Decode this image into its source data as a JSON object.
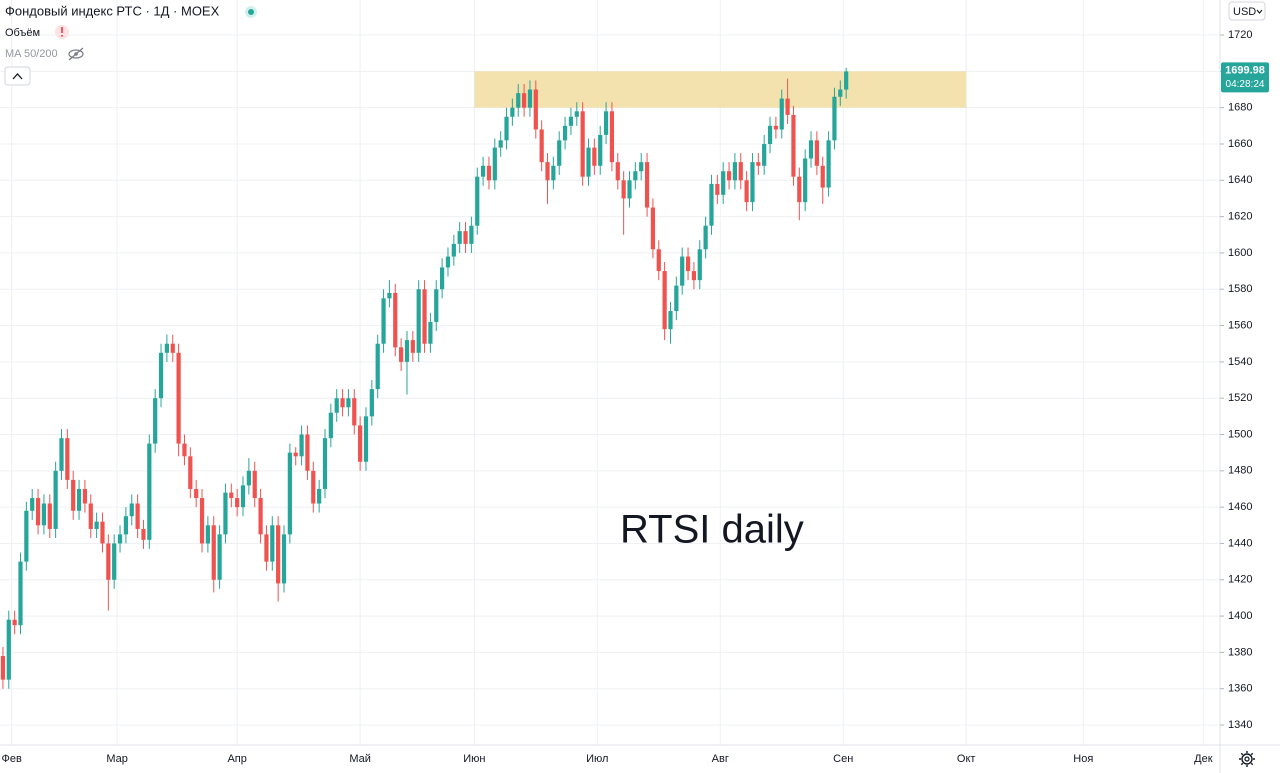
{
  "chart_data": {
    "type": "candlestick",
    "title": "Фондовый индекс РТС · 1Д · MOEX",
    "indicators": [
      "Объём",
      "MA 50/200"
    ],
    "currency": "USD",
    "annotation": "RTSI daily",
    "last_price_label": "1699.98",
    "countdown": "04:28:24",
    "up_color": "#26a69a",
    "down_color": "#ef5350",
    "zone": {
      "x": [
        80.5,
        164.5
      ],
      "y": [
        1680,
        1700
      ],
      "color": "#f2e0aa"
    },
    "grid": true,
    "ylim": [
      1329,
      1739.3
    ],
    "yticks": [
      1340,
      1360,
      1380,
      1400,
      1420,
      1440,
      1460,
      1480,
      1500,
      1520,
      1540,
      1560,
      1580,
      1600,
      1620,
      1640,
      1660,
      1680,
      1700,
      1720
    ],
    "xlim": [
      -0.5,
      207.5
    ],
    "xticks": [
      {
        "value": 1.5,
        "label": "Фев"
      },
      {
        "value": 19.5,
        "label": "Мар"
      },
      {
        "value": 40,
        "label": "Апр"
      },
      {
        "value": 61,
        "label": "Май"
      },
      {
        "value": 80.5,
        "label": "Июн"
      },
      {
        "value": 101.5,
        "label": "Июл"
      },
      {
        "value": 122.5,
        "label": "Авг"
      },
      {
        "value": 143.5,
        "label": "Сен"
      },
      {
        "value": 164.5,
        "label": "Окт"
      },
      {
        "value": 184.5,
        "label": "Ноя"
      },
      {
        "value": 205,
        "label": "Дек"
      }
    ],
    "open": [
      1378,
      1365,
      1398,
      1395,
      1430,
      1458,
      1465,
      1450,
      1462,
      1448,
      1480,
      1498,
      1475,
      1458,
      1470,
      1462,
      1448,
      1452,
      1440,
      1420,
      1440,
      1445,
      1455,
      1462,
      1448,
      1442,
      1495,
      1520,
      1545,
      1550,
      1545,
      1495,
      1488,
      1470,
      1465,
      1440,
      1450,
      1420,
      1445,
      1468,
      1465,
      1460,
      1472,
      1480,
      1465,
      1445,
      1430,
      1450,
      1418,
      1445,
      1490,
      1488,
      1500,
      1480,
      1462,
      1470,
      1498,
      1512,
      1520,
      1515,
      1520,
      1505,
      1485,
      1510,
      1525,
      1550,
      1575,
      1578,
      1548,
      1540,
      1552,
      1545,
      1580,
      1550,
      1562,
      1580,
      1592,
      1598,
      1605,
      1612,
      1605,
      1615,
      1642,
      1648,
      1640,
      1658,
      1662,
      1675,
      1680,
      1688,
      1680,
      1690,
      1668,
      1650,
      1640,
      1648,
      1662,
      1670,
      1675,
      1678,
      1642,
      1658,
      1648,
      1665,
      1678,
      1650,
      1640,
      1630,
      1640,
      1645,
      1650,
      1625,
      1602,
      1590,
      1558,
      1568,
      1582,
      1598,
      1590,
      1585,
      1602,
      1615,
      1638,
      1632,
      1645,
      1640,
      1650,
      1640,
      1628,
      1650,
      1648,
      1660,
      1670,
      1668,
      1685,
      1676,
      1642,
      1628,
      1652,
      1662,
      1648,
      1636,
      1662,
      1686,
      1690
    ],
    "high": [
      1383,
      1403,
      1403,
      1435,
      1463,
      1470,
      1470,
      1467,
      1467,
      1485,
      1503,
      1503,
      1480,
      1475,
      1475,
      1467,
      1457,
      1457,
      1445,
      1445,
      1450,
      1460,
      1467,
      1467,
      1453,
      1500,
      1525,
      1550,
      1555,
      1555,
      1550,
      1500,
      1493,
      1475,
      1470,
      1455,
      1455,
      1450,
      1473,
      1473,
      1470,
      1477,
      1487,
      1485,
      1470,
      1450,
      1455,
      1455,
      1450,
      1495,
      1493,
      1505,
      1505,
      1485,
      1475,
      1503,
      1517,
      1525,
      1525,
      1525,
      1525,
      1510,
      1515,
      1530,
      1555,
      1580,
      1585,
      1583,
      1553,
      1557,
      1557,
      1585,
      1585,
      1567,
      1585,
      1597,
      1603,
      1610,
      1617,
      1617,
      1620,
      1647,
      1653,
      1653,
      1663,
      1667,
      1680,
      1685,
      1693,
      1693,
      1695,
      1695,
      1673,
      1655,
      1653,
      1667,
      1675,
      1680,
      1683,
      1683,
      1663,
      1663,
      1670,
      1683,
      1683,
      1655,
      1645,
      1645,
      1650,
      1655,
      1655,
      1630,
      1607,
      1595,
      1573,
      1587,
      1603,
      1603,
      1595,
      1607,
      1620,
      1643,
      1643,
      1650,
      1650,
      1655,
      1655,
      1645,
      1655,
      1655,
      1665,
      1675,
      1675,
      1690,
      1696,
      1681,
      1647,
      1657,
      1667,
      1667,
      1653,
      1667,
      1691,
      1695,
      1702
    ],
    "low": [
      1360,
      1360,
      1390,
      1390,
      1425,
      1453,
      1445,
      1445,
      1443,
      1443,
      1475,
      1470,
      1453,
      1453,
      1457,
      1443,
      1443,
      1435,
      1403,
      1415,
      1435,
      1440,
      1450,
      1443,
      1437,
      1437,
      1490,
      1515,
      1540,
      1540,
      1488,
      1483,
      1465,
      1460,
      1435,
      1435,
      1413,
      1415,
      1440,
      1460,
      1455,
      1455,
      1467,
      1460,
      1440,
      1425,
      1425,
      1408,
      1413,
      1440,
      1483,
      1483,
      1475,
      1457,
      1457,
      1465,
      1493,
      1507,
      1510,
      1510,
      1500,
      1480,
      1480,
      1505,
      1520,
      1545,
      1570,
      1543,
      1535,
      1522,
      1540,
      1540,
      1545,
      1545,
      1557,
      1575,
      1587,
      1593,
      1600,
      1600,
      1600,
      1610,
      1637,
      1635,
      1635,
      1653,
      1657,
      1670,
      1675,
      1675,
      1675,
      1663,
      1645,
      1627,
      1635,
      1643,
      1657,
      1665,
      1670,
      1637,
      1637,
      1643,
      1643,
      1660,
      1645,
      1635,
      1610,
      1625,
      1635,
      1640,
      1620,
      1597,
      1585,
      1552,
      1550,
      1563,
      1577,
      1585,
      1580,
      1580,
      1597,
      1610,
      1627,
      1627,
      1635,
      1635,
      1635,
      1623,
      1623,
      1643,
      1643,
      1655,
      1663,
      1663,
      1671,
      1637,
      1618,
      1623,
      1647,
      1643,
      1627,
      1631,
      1657,
      1681,
      1685
    ],
    "close": [
      1365,
      1398,
      1395,
      1430,
      1458,
      1465,
      1450,
      1462,
      1448,
      1480,
      1498,
      1475,
      1458,
      1470,
      1462,
      1448,
      1452,
      1440,
      1420,
      1440,
      1445,
      1455,
      1462,
      1448,
      1442,
      1495,
      1520,
      1545,
      1550,
      1545,
      1495,
      1488,
      1470,
      1465,
      1440,
      1450,
      1420,
      1445,
      1468,
      1465,
      1460,
      1472,
      1480,
      1465,
      1445,
      1430,
      1450,
      1418,
      1445,
      1490,
      1488,
      1500,
      1480,
      1462,
      1470,
      1498,
      1512,
      1520,
      1515,
      1520,
      1505,
      1485,
      1510,
      1525,
      1550,
      1575,
      1578,
      1548,
      1540,
      1552,
      1545,
      1580,
      1550,
      1562,
      1580,
      1592,
      1598,
      1605,
      1612,
      1605,
      1615,
      1642,
      1648,
      1640,
      1658,
      1662,
      1675,
      1680,
      1688,
      1680,
      1690,
      1668,
      1650,
      1640,
      1648,
      1662,
      1670,
      1675,
      1678,
      1642,
      1658,
      1648,
      1665,
      1678,
      1650,
      1640,
      1630,
      1640,
      1645,
      1650,
      1625,
      1602,
      1590,
      1558,
      1568,
      1582,
      1598,
      1590,
      1585,
      1602,
      1615,
      1638,
      1632,
      1645,
      1640,
      1650,
      1640,
      1628,
      1650,
      1648,
      1660,
      1670,
      1668,
      1685,
      1676,
      1642,
      1628,
      1652,
      1662,
      1648,
      1636,
      1662,
      1686,
      1690,
      1699.98
    ]
  }
}
